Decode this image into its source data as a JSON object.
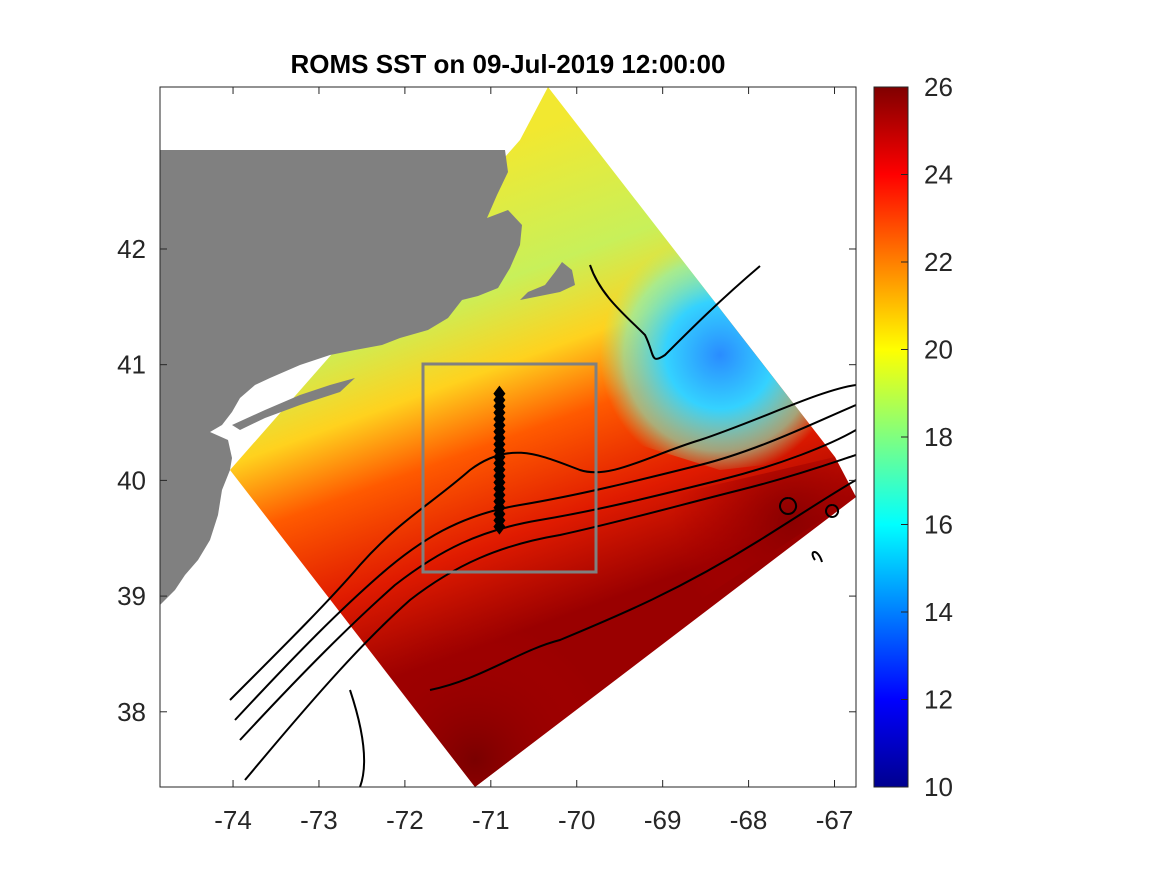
{
  "chart_data": {
    "type": "heatmap",
    "title": "ROMS SST on 09-Jul-2019 12:00:00",
    "xlabel": "",
    "ylabel": "",
    "xlim": [
      -74.85,
      -66.75
    ],
    "ylim": [
      37.35,
      43.4
    ],
    "x_ticks": [
      "-74",
      "-73",
      "-72",
      "-71",
      "-70",
      "-69",
      "-68",
      "-67"
    ],
    "y_ticks": [
      "38",
      "39",
      "40",
      "41",
      "42"
    ],
    "colorbar": {
      "colormap": "jet",
      "range": [
        10,
        26
      ],
      "ticks": [
        "10",
        "12",
        "14",
        "16",
        "18",
        "20",
        "22",
        "24",
        "26"
      ]
    },
    "land_color": "#808080",
    "highlight_box": {
      "lon": [
        -71.75,
        -69.8
      ],
      "lat": [
        39.25,
        41.1
      ],
      "color": "#808080"
    },
    "transect": {
      "lon": -70.9,
      "lat": [
        39.6,
        40.75
      ],
      "marker": "diamond",
      "color": "#000000"
    },
    "contour_color": "#000000"
  }
}
